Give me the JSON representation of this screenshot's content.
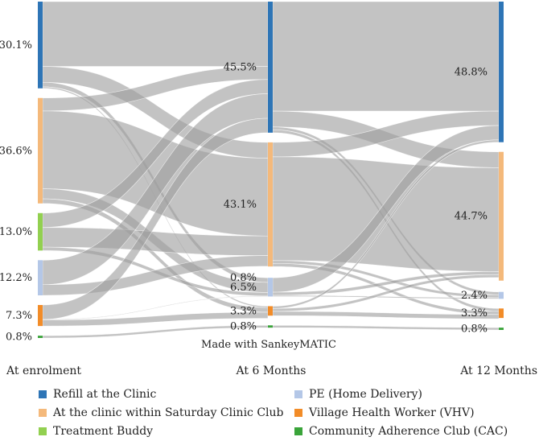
{
  "chart_data": {
    "type": "sankey",
    "title": "",
    "watermark": "Made with SankeyMATIC",
    "stages": [
      "At enrolment",
      "At 6 Months",
      "At 12 Months"
    ],
    "categories": [
      {
        "id": "refill",
        "name": "Refill at the Clinic",
        "color": "#2e75b6"
      },
      {
        "id": "sat",
        "name": "At the clinic within Saturday Clinic Club",
        "color": "#f4b97b"
      },
      {
        "id": "buddy",
        "name": "Treatment Buddy",
        "color": "#92d050"
      },
      {
        "id": "pe",
        "name": "PE (Home Delivery)",
        "color": "#b4c7e7"
      },
      {
        "id": "vhv",
        "name": "Village Health Worker (VHV)",
        "color": "#f28c28"
      },
      {
        "id": "cac",
        "name": "Community Adherence Club (CAC)",
        "color": "#3aa43a"
      }
    ],
    "node_values": [
      {
        "refill": 30.1,
        "sat": 36.6,
        "buddy": 13.0,
        "pe": 12.2,
        "vhv": 7.3,
        "cac": 0.8
      },
      {
        "refill": 45.5,
        "sat": 43.1,
        "buddy": 0.0,
        "pe": 6.5,
        "vhv": 3.3,
        "cac": 0.8
      },
      {
        "refill": 48.8,
        "sat": 44.7,
        "buddy": 0.0,
        "pe": 2.4,
        "vhv": 3.3,
        "cac": 0.8
      }
    ],
    "node_labels": [
      {
        "refill": "30.1%",
        "sat": "36.6%",
        "buddy": "13.0%",
        "pe": "12.2%",
        "vhv": "7.3%",
        "cac": "0.8%"
      },
      {
        "refill": "45.5%",
        "sat": "43.1%",
        "pe": "6.5%",
        "vhv": "3.3%",
        "cac": "0.8%",
        "zero": "0.8%"
      },
      {
        "refill": "48.8%",
        "sat": "44.7%",
        "pe": "2.4%",
        "vhv": "3.3%",
        "cac": "0.8%"
      }
    ],
    "flows": [
      [
        {
          "from": "refill",
          "to": "refill",
          "value": 22.5
        },
        {
          "from": "refill",
          "to": "sat",
          "value": 5.5
        },
        {
          "from": "refill",
          "to": "pe",
          "value": 1.6
        },
        {
          "from": "refill",
          "to": "vhv",
          "value": 0.5
        },
        {
          "from": "sat",
          "to": "refill",
          "value": 4.5
        },
        {
          "from": "sat",
          "to": "sat",
          "value": 27.0
        },
        {
          "from": "sat",
          "to": "pe",
          "value": 3.5
        },
        {
          "from": "sat",
          "to": "vhv",
          "value": 1.6
        },
        {
          "from": "buddy",
          "to": "refill",
          "value": 5.0
        },
        {
          "from": "buddy",
          "to": "sat",
          "value": 6.8
        },
        {
          "from": "buddy",
          "to": "pe",
          "value": 1.2
        },
        {
          "from": "pe",
          "to": "refill",
          "value": 8.5
        },
        {
          "from": "pe",
          "to": "sat",
          "value": 3.7
        },
        {
          "from": "vhv",
          "to": "refill",
          "value": 5.0
        },
        {
          "from": "vhv",
          "to": "pe",
          "value": 0.2
        },
        {
          "from": "vhv",
          "to": "vhv",
          "value": 2.1
        },
        {
          "from": "cac",
          "to": "cac",
          "value": 0.8
        }
      ],
      [
        {
          "from": "refill",
          "to": "refill",
          "value": 38.0
        },
        {
          "from": "refill",
          "to": "sat",
          "value": 5.5
        },
        {
          "from": "refill",
          "to": "pe",
          "value": 1.0
        },
        {
          "from": "refill",
          "to": "vhv",
          "value": 1.0
        },
        {
          "from": "sat",
          "to": "refill",
          "value": 5.0
        },
        {
          "from": "sat",
          "to": "sat",
          "value": 36.0
        },
        {
          "from": "sat",
          "to": "pe",
          "value": 1.0
        },
        {
          "from": "sat",
          "to": "vhv",
          "value": 1.1
        },
        {
          "from": "pe",
          "to": "refill",
          "value": 5.0
        },
        {
          "from": "pe",
          "to": "sat",
          "value": 1.1
        },
        {
          "from": "pe",
          "to": "pe",
          "value": 0.4
        },
        {
          "from": "vhv",
          "to": "refill",
          "value": 0.8
        },
        {
          "from": "vhv",
          "to": "sat",
          "value": 1.0
        },
        {
          "from": "vhv",
          "to": "vhv",
          "value": 1.5
        },
        {
          "from": "cac",
          "to": "cac",
          "value": 0.8
        }
      ]
    ],
    "legend": [
      {
        "name": "Refill at the Clinic",
        "color": "#2e75b6"
      },
      {
        "name": "PE (Home Delivery)",
        "color": "#b4c7e7"
      },
      {
        "name": "At the clinic within Saturday Clinic Club",
        "color": "#f4b97b"
      },
      {
        "name": "Village Health Worker (VHV)",
        "color": "#f28c28"
      },
      {
        "name": "Treatment Buddy",
        "color": "#92d050"
      },
      {
        "name": "Community Adherence Club (CAC)",
        "color": "#3aa43a"
      }
    ]
  }
}
